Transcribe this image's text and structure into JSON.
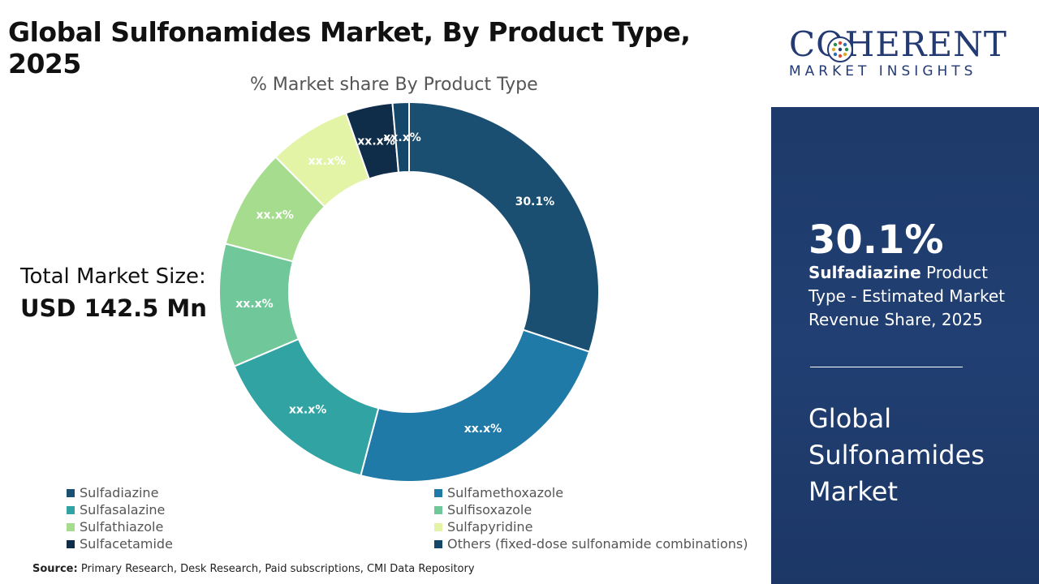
{
  "title": "Global Sulfonamides Market, By Product Type, 2025",
  "chart_data": {
    "type": "pie",
    "title": "% Market share By Product Type",
    "donut": true,
    "categories": [
      "Sulfadiazine",
      "Sulfamethoxazole",
      "Sulfasalazine",
      "Sulfisoxazole",
      "Sulfathiazole",
      "Sulfapyridine",
      "Sulfacetamide",
      "Others (fixed-dose sulfonamide combinations)"
    ],
    "values": [
      30.1,
      24.0,
      14.5,
      10.5,
      8.5,
      7.0,
      4.0,
      1.4
    ],
    "labels": [
      "30.1%",
      "xx.x%",
      "xx.x%",
      "xx.x%",
      "xx.x%",
      "xx.x%",
      "xx.x%",
      "xx.x%"
    ],
    "colors": [
      "#1b4f72",
      "#1f7aa8",
      "#31a3a3",
      "#6fc79a",
      "#a5dc8e",
      "#e3f4a6",
      "#0f2d48",
      "#15476b"
    ],
    "legend_position": "bottom"
  },
  "total": {
    "label": "Total Market Size:",
    "value": "USD 142.5 Mn"
  },
  "source": {
    "label": "Source:",
    "text": "Primary Research, Desk Research, Paid subscriptions, CMI Data Repository"
  },
  "logo": {
    "main": "COHERENT",
    "sub": "MARKET INSIGHTS"
  },
  "sidebar": {
    "stat_value": "30.1%",
    "stat_highlight": "Sulfadiazine",
    "stat_text": " Product Type - Estimated Market Revenue Share, 2025",
    "market_name": "Global Sulfonamides Market"
  }
}
